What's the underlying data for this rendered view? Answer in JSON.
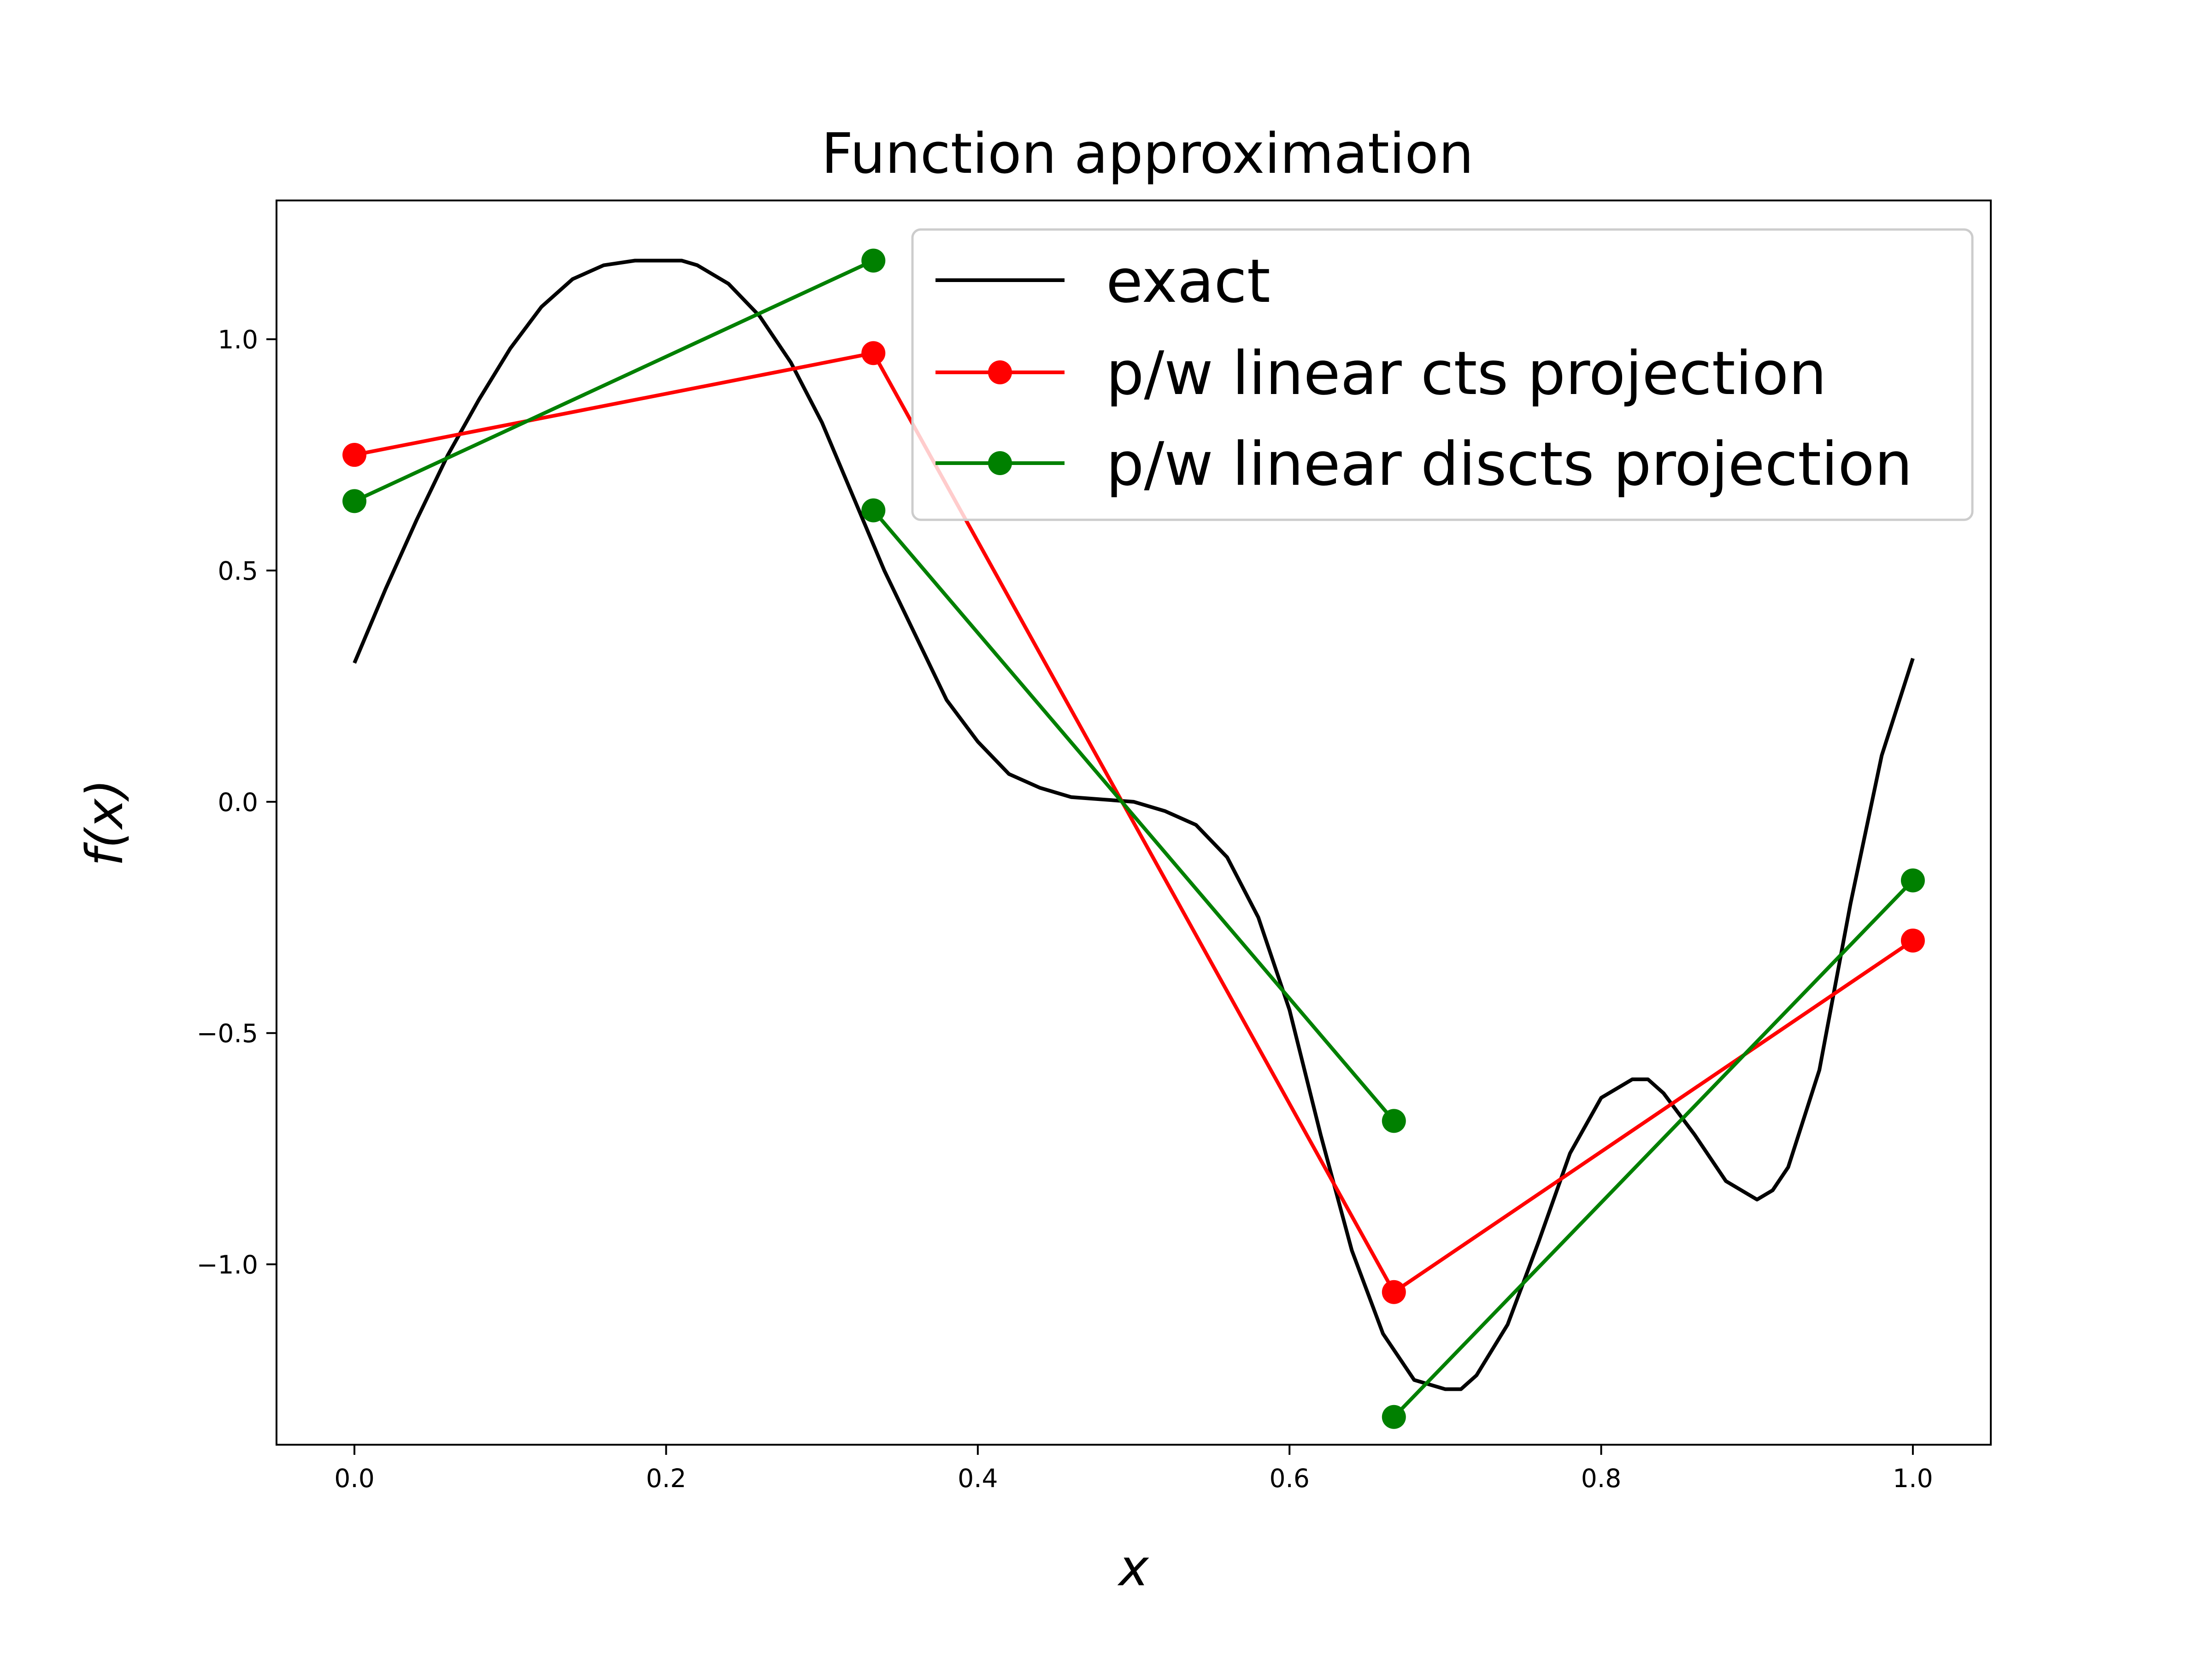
{
  "chart_data": {
    "type": "line",
    "title": "Function approximation",
    "xlabel": "x",
    "ylabel": "f(x)",
    "xlim": [
      -0.05,
      1.05
    ],
    "ylim": [
      -1.39,
      1.3
    ],
    "xticks": [
      0.0,
      0.2,
      0.4,
      0.6,
      0.8,
      1.0
    ],
    "xtick_labels": [
      "0.0",
      "0.2",
      "0.4",
      "0.6",
      "0.8",
      "1.0"
    ],
    "yticks": [
      -1.0,
      -0.5,
      0.0,
      0.5,
      1.0
    ],
    "ytick_labels": [
      "−1.0",
      "−0.5",
      "0.0",
      "0.5",
      "1.0"
    ],
    "grid": false,
    "legend_position": "top-right",
    "series": [
      {
        "name": "exact",
        "color": "#000000",
        "markers": false,
        "segments": [
          {
            "x": [
              0.0,
              0.02,
              0.04,
              0.06,
              0.08,
              0.1,
              0.12,
              0.14,
              0.16,
              0.18,
              0.2,
              0.21,
              0.22,
              0.24,
              0.26,
              0.28,
              0.3,
              0.32,
              0.34,
              0.36,
              0.38,
              0.4,
              0.42,
              0.44,
              0.46,
              0.48,
              0.5,
              0.52,
              0.54,
              0.56,
              0.58,
              0.6,
              0.62,
              0.64,
              0.66,
              0.68,
              0.7,
              0.71,
              0.72,
              0.74,
              0.76,
              0.78,
              0.8,
              0.82,
              0.83,
              0.84,
              0.86,
              0.88,
              0.9,
              0.91,
              0.92,
              0.94,
              0.96,
              0.98,
              1.0
            ],
            "y": [
              0.3,
              0.46,
              0.61,
              0.75,
              0.87,
              0.98,
              1.07,
              1.13,
              1.16,
              1.17,
              1.17,
              1.17,
              1.16,
              1.12,
              1.05,
              0.95,
              0.82,
              0.66,
              0.5,
              0.36,
              0.22,
              0.13,
              0.06,
              0.03,
              0.01,
              0.005,
              0.0,
              -0.02,
              -0.05,
              -0.12,
              -0.25,
              -0.45,
              -0.72,
              -0.97,
              -1.15,
              -1.25,
              -1.27,
              -1.27,
              -1.24,
              -1.13,
              -0.95,
              -0.76,
              -0.64,
              -0.6,
              -0.6,
              -0.63,
              -0.72,
              -0.82,
              -0.86,
              -0.84,
              -0.79,
              -0.58,
              -0.22,
              0.1,
              0.31
            ]
          }
        ]
      },
      {
        "name": "p/w linear cts projection",
        "color": "#ff0000",
        "markers": true,
        "segments": [
          {
            "x": [
              0.0,
              0.333,
              0.667,
              1.0
            ],
            "y": [
              0.75,
              0.97,
              -1.06,
              -0.3
            ]
          }
        ]
      },
      {
        "name": "p/w linear discts projection",
        "color": "#008000",
        "markers": true,
        "segments": [
          {
            "x": [
              0.0,
              0.333
            ],
            "y": [
              0.65,
              1.17
            ]
          },
          {
            "x": [
              0.333,
              0.667
            ],
            "y": [
              0.63,
              -0.69
            ]
          },
          {
            "x": [
              0.667,
              1.0
            ],
            "y": [
              -1.33,
              -0.17
            ]
          }
        ]
      }
    ]
  }
}
